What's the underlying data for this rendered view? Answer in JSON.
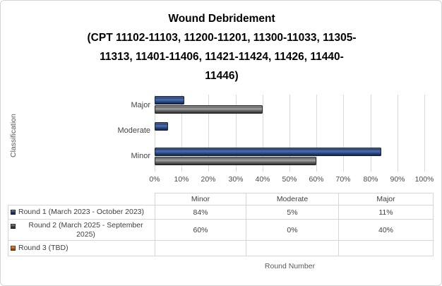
{
  "title": {
    "lines": [
      "Wound Debridement",
      "(CPT 11102-11103, 11200-11201, 11300-11033, 11305-",
      "11313, 11401-11406, 11421-11424, 11426, 11440-",
      "11446)"
    ]
  },
  "chart_data": {
    "type": "bar",
    "orientation": "horizontal",
    "title": "Wound Debridement (CPT 11102-11103, 11200-11201, 11300-11033, 11305-11313, 11401-11406, 11421-11424, 11426, 11440-11446)",
    "categories": [
      "Minor",
      "Moderate",
      "Major"
    ],
    "display_order_top_to_bottom": [
      "Major",
      "Moderate",
      "Minor"
    ],
    "series": [
      {
        "name": "Round 1 (March 2023 - October 2023)",
        "color": "#1F3864",
        "values": [
          84,
          5,
          11
        ],
        "display": [
          "84%",
          "5%",
          "11%"
        ]
      },
      {
        "name": "Round 2 (March 2025 - September 2025)",
        "color": "#404040",
        "values": [
          60,
          0,
          40
        ],
        "display": [
          "60%",
          "0%",
          "40%"
        ]
      },
      {
        "name": "Round 3 (TBD)",
        "color": "#C55A11",
        "values": [
          null,
          null,
          null
        ],
        "display": [
          "",
          "",
          ""
        ]
      }
    ],
    "xlabel": "Round Number",
    "ylabel": "Classification",
    "xlim": [
      0,
      100
    ],
    "x_ticks": [
      "0%",
      "10%",
      "20%",
      "30%",
      "40%",
      "50%",
      "60%",
      "70%",
      "80%",
      "90%",
      "100%"
    ],
    "grid": true,
    "legend_position": "data-table-left",
    "data_table": true
  },
  "colors": {
    "gridline": "#D9D9D9",
    "table_border": "#D6D6D6",
    "axis_text": "#595959",
    "title_text": "#000000"
  }
}
